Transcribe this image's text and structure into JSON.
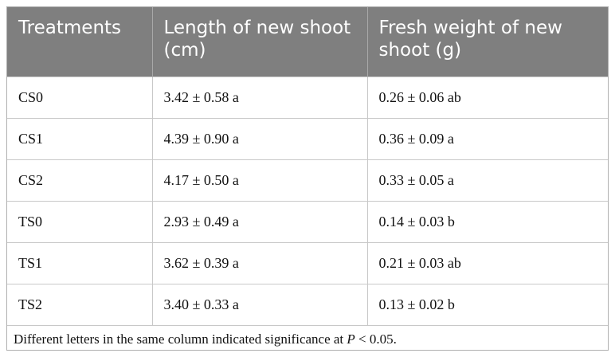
{
  "table": {
    "header": [
      "Treatments",
      "Length of new shoot (cm)",
      "Fresh weight of new shoot (g)"
    ],
    "rows": [
      [
        "CS0",
        "3.42 ± 0.58 a",
        "0.26 ± 0.06 ab"
      ],
      [
        "CS1",
        "4.39 ± 0.90 a",
        "0.36 ± 0.09 a"
      ],
      [
        "CS2",
        "4.17 ± 0.50 a",
        "0.33 ± 0.05 a"
      ],
      [
        "TS0",
        "2.93 ± 0.49 a",
        "0.14 ± 0.03 b"
      ],
      [
        "TS1",
        "3.62 ± 0.39 a",
        "0.21 ± 0.03 ab"
      ],
      [
        "TS2",
        "3.40 ± 0.33 a",
        "0.13 ± 0.02 b"
      ]
    ]
  },
  "note": {
    "before": "Different letters in the same column indicated significance at ",
    "italic": "P",
    "after": " < 0.05."
  }
}
